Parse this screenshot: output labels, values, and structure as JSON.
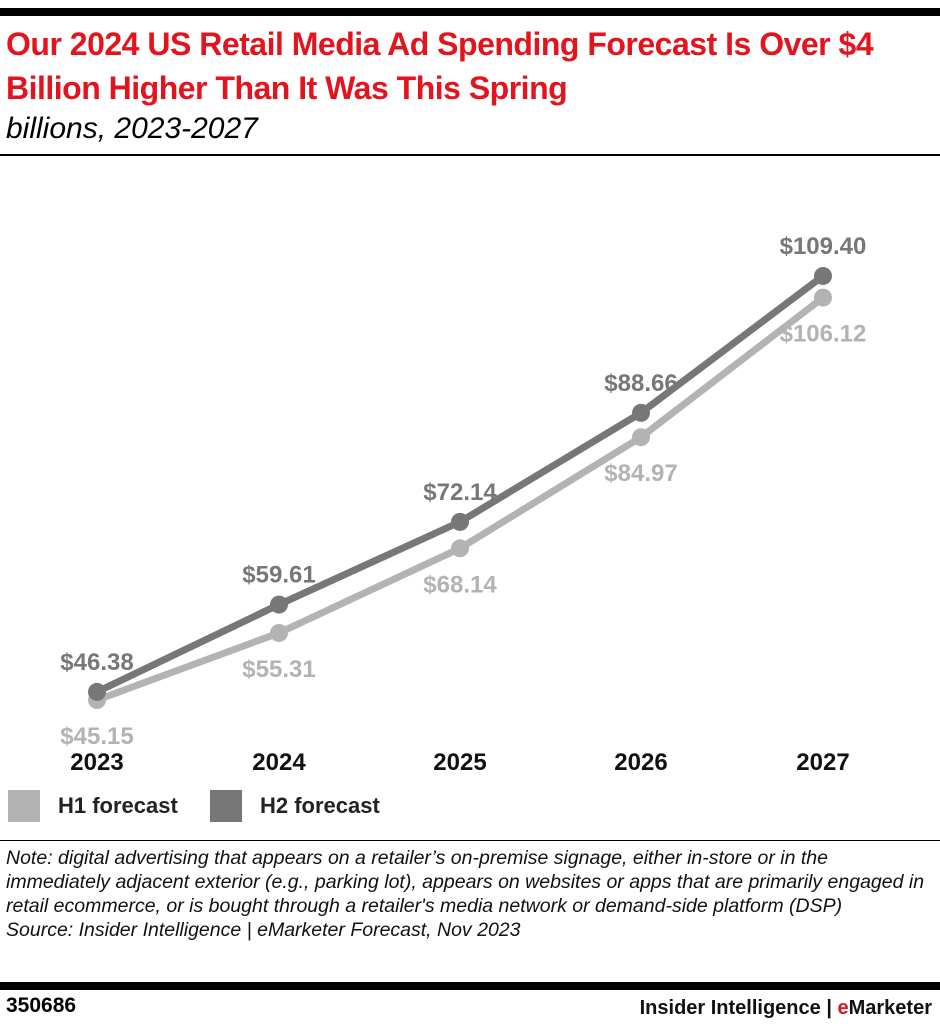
{
  "title": "Our 2024 US Retail Media Ad Spending Forecast Is Over $4 Billion Higher Than It Was This Spring",
  "subtitle": "billions, 2023-2027",
  "chart_data": {
    "type": "line",
    "title": "Our 2024 US Retail Media Ad Spending Forecast Is Over $4 Billion Higher Than It Was This Spring",
    "subtitle": "billions, 2023-2027",
    "categories": [
      "2023",
      "2024",
      "2025",
      "2026",
      "2027"
    ],
    "series": [
      {
        "name": "H1 forecast",
        "color": "#b3b3b3",
        "values": [
          45.15,
          55.31,
          68.14,
          84.97,
          106.12
        ],
        "labels": [
          "$45.15",
          "$55.31",
          "$68.14",
          "$84.97",
          "$106.12"
        ]
      },
      {
        "name": "H2 forecast",
        "color": "#777777",
        "values": [
          46.38,
          59.61,
          72.14,
          88.66,
          109.4
        ],
        "labels": [
          "$46.38",
          "$59.61",
          "$72.14",
          "$88.66",
          "$109.40"
        ]
      }
    ],
    "grid": false,
    "legend": "bottom-left"
  },
  "note": "Note: digital advertising that appears on a retailer’s on-premise signage, either in-store or in the immediately adjacent exterior (e.g., parking lot), appears on websites or apps that are primarily engaged in retail ecommerce, or is bought through a retailer's media network or demand-side platform (DSP)",
  "source": "Source: Insider Intelligence | eMarketer Forecast, Nov 2023",
  "footer": {
    "id": "350686",
    "brand_prefix": "Insider Intelligence | ",
    "brand_e": "e",
    "brand_rest": "Marketer"
  }
}
